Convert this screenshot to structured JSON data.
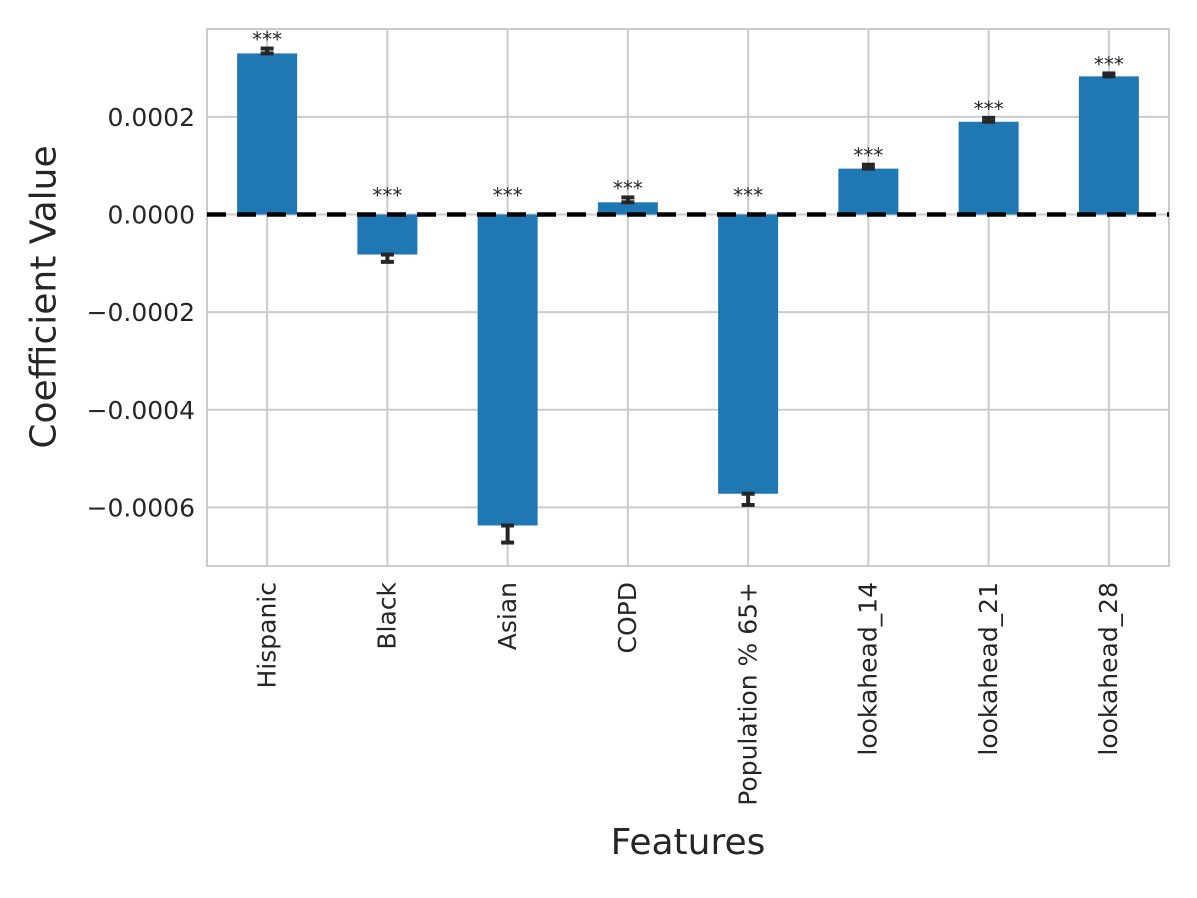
{
  "chart_data": {
    "type": "bar",
    "title": "",
    "xlabel": "Features",
    "ylabel": "Coefficient Value",
    "categories": [
      "Hispanic",
      "Black",
      "Asian",
      "COPD",
      "Population % 65+",
      "lookahead_14",
      "lookahead_21",
      "lookahead_28"
    ],
    "values": [
      0.00033,
      -8.2e-05,
      -0.000637,
      2.5e-05,
      -0.000572,
      9.4e-05,
      0.00019,
      0.000283
    ],
    "errors": [
      1e-05,
      1.5e-05,
      3.5e-05,
      1e-05,
      2.3e-05,
      8e-06,
      8e-06,
      6e-06
    ],
    "significance": [
      "***",
      "***",
      "***",
      "***",
      "***",
      "***",
      "***",
      "***"
    ],
    "ylim": [
      -0.00072,
      0.00038
    ],
    "yticks": [
      0.0002,
      0.0,
      -0.0002,
      -0.0004,
      -0.0006
    ],
    "ytick_labels": [
      "0.0002",
      "0.0000",
      "−0.0002",
      "−0.0004",
      "−0.0006"
    ],
    "grid": true,
    "legend": "none",
    "zero_line": {
      "style": "dashed",
      "color": "#000000",
      "y": 0
    },
    "bar_color": "#1f77b4",
    "grid_color": "#cbcbcb",
    "text_color": "#262626",
    "error_color": "#262626"
  }
}
